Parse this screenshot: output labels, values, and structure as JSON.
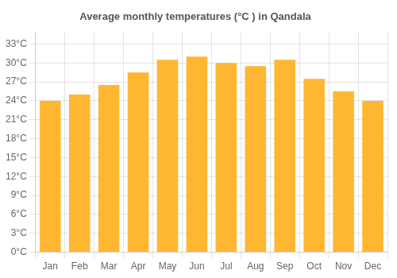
{
  "chart_data": {
    "type": "bar",
    "title": "Average monthly temperatures (°C ) in Qandala",
    "categories": [
      "Jan",
      "Feb",
      "Mar",
      "Apr",
      "May",
      "Jun",
      "Jul",
      "Aug",
      "Sep",
      "Oct",
      "Nov",
      "Dec"
    ],
    "values": [
      24,
      25,
      26.5,
      28.5,
      30.5,
      31,
      30,
      29.5,
      30.5,
      27.5,
      25.5,
      24
    ],
    "color": "#FFB732",
    "ylim": [
      0,
      35
    ],
    "yticks": [
      {
        "value": 0,
        "label": "0°C"
      },
      {
        "value": 3,
        "label": "3°C"
      },
      {
        "value": 6,
        "label": "6°C"
      },
      {
        "value": 9,
        "label": "9°C"
      },
      {
        "value": 12,
        "label": "12°C"
      },
      {
        "value": 15,
        "label": "15°C"
      },
      {
        "value": 18,
        "label": "18°C"
      },
      {
        "value": 21,
        "label": "21°C"
      },
      {
        "value": 24,
        "label": "24°C"
      },
      {
        "value": 27,
        "label": "27°C"
      },
      {
        "value": 30,
        "label": "30°C"
      },
      {
        "value": 33,
        "label": "33°C"
      }
    ],
    "grid": true
  }
}
